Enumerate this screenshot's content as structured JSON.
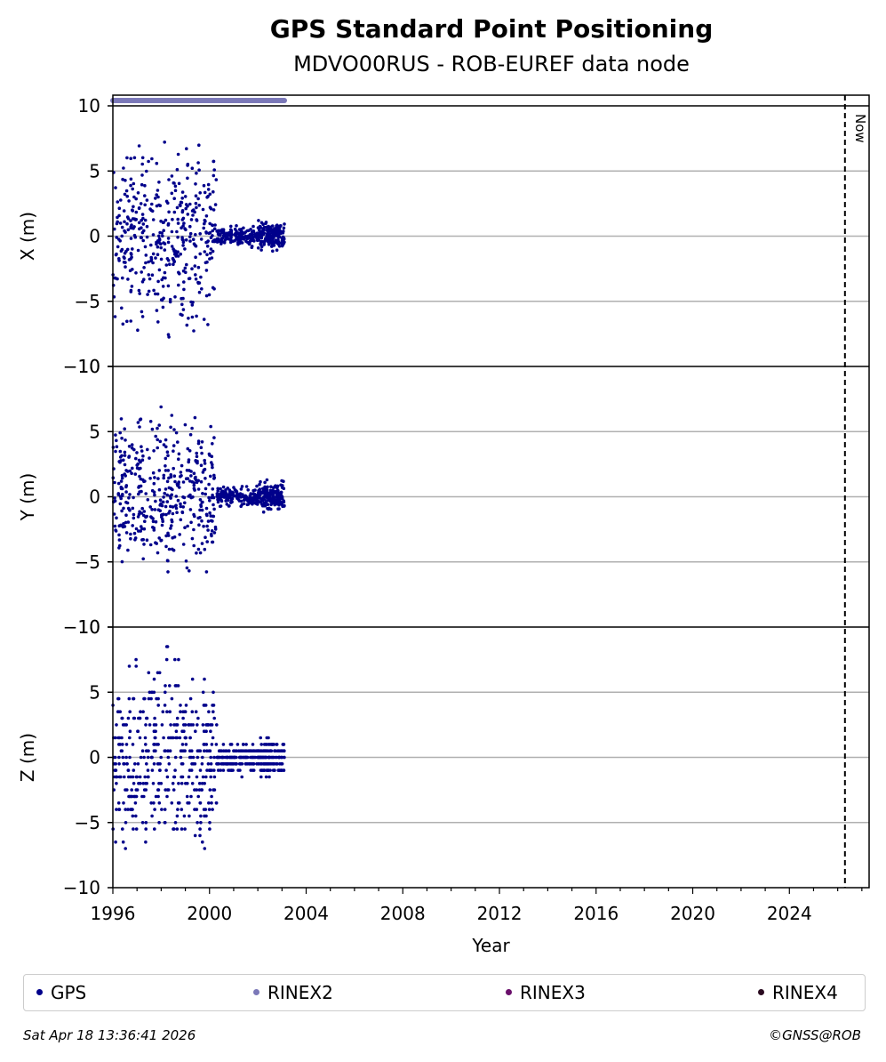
{
  "chart_data": {
    "type": "scatter",
    "title": "GPS Standard Point Positioning",
    "subtitle": "MDVO00RUS - ROB-EUREF data node",
    "xlabel": "Year",
    "xlim": [
      1996,
      2027.3
    ],
    "xticks": [
      "1996",
      "2000",
      "2004",
      "2008",
      "2012",
      "2016",
      "2020",
      "2024"
    ],
    "now_label": "Now",
    "now_x": 2026.3,
    "grid": true,
    "panels": [
      {
        "ylabel": "X (m)",
        "ylim": [
          -10,
          10
        ],
        "yticks": [
          "10",
          "5",
          "0",
          "−5",
          "−10"
        ]
      },
      {
        "ylabel": "Y (m)",
        "ylim": [
          -10,
          10
        ],
        "yticks": [
          "10",
          "5",
          "0",
          "−5",
          "−10"
        ]
      },
      {
        "ylabel": "Z (m)",
        "ylim": [
          -10,
          10
        ],
        "yticks": [
          "10",
          "5",
          "0",
          "−5",
          "−10"
        ]
      }
    ],
    "availability_bar": {
      "series": "RINEX2",
      "from": 1996.0,
      "to": 2003.1
    },
    "segments": [
      {
        "from": 1996.0,
        "to": 2000.3,
        "spread_x": 9,
        "spread_y": 8,
        "spread_z": 10
      },
      {
        "from": 2000.3,
        "to": 2002.0,
        "spread_x": 1.0,
        "spread_y": 1.0,
        "spread_z": 1.5
      },
      {
        "from": 2002.0,
        "to": 2003.1,
        "spread_x": 1.5,
        "spread_y": 1.5,
        "spread_z": 2.0
      }
    ],
    "series": [
      {
        "name": "GPS",
        "color": "#00008b"
      },
      {
        "name": "RINEX2",
        "color": "#7b78b8"
      },
      {
        "name": "RINEX3",
        "color": "#6a0f6b"
      },
      {
        "name": "RINEX4",
        "color": "#2a0a20"
      }
    ]
  },
  "legend": {
    "items": [
      {
        "label": "GPS",
        "color": "#00008b"
      },
      {
        "label": "RINEX2",
        "color": "#7b78b8"
      },
      {
        "label": "RINEX3",
        "color": "#6a0f6b"
      },
      {
        "label": "RINEX4",
        "color": "#2a0a20"
      }
    ]
  },
  "footer": {
    "timestamp": "Sat Apr 18 13:36:41 2026",
    "copyright": "©GNSS@ROB"
  }
}
